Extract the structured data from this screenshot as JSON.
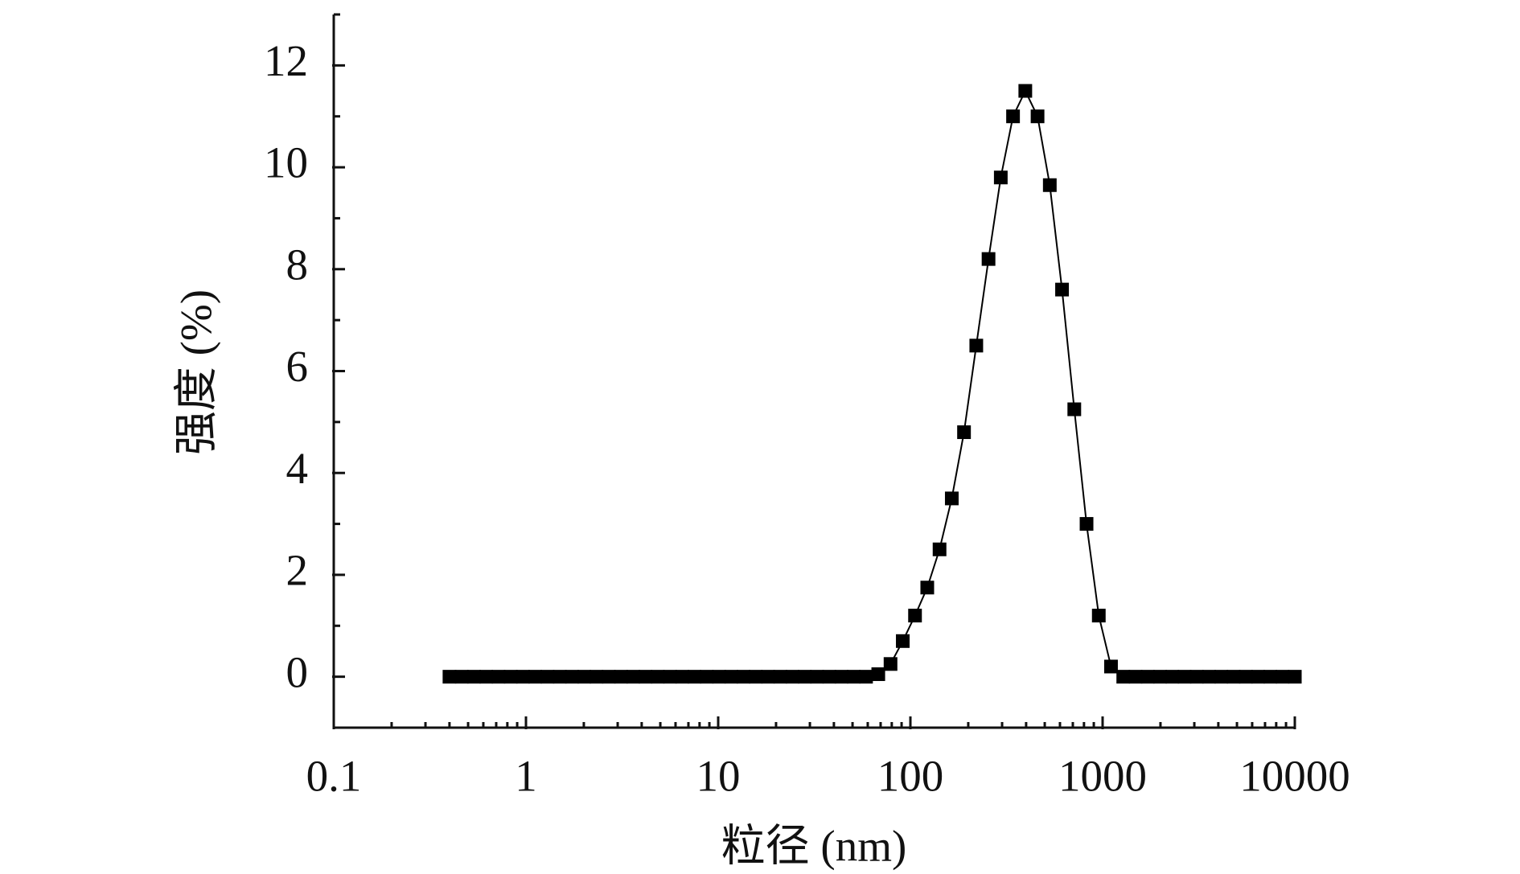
{
  "chart_data": {
    "type": "line",
    "x_label": "粒径 (nm)",
    "y_label": "强度 (%)",
    "x": [
      0.4,
      0.4632,
      0.5365,
      0.6213,
      0.7195,
      0.8332,
      0.9649,
      1.117,
      1.294,
      1.499,
      1.736,
      2.01,
      2.328,
      2.696,
      3.122,
      3.615,
      4.187,
      4.849,
      5.615,
      6.503,
      7.531,
      8.721,
      10.1,
      11.7,
      13.54,
      15.69,
      18.17,
      21.04,
      24.36,
      28.21,
      32.67,
      37.84,
      43.82,
      50.75,
      58.77,
      68.06,
      78.82,
      91.28,
      105.7,
      122.4,
      141.8,
      164.2,
      190.1,
      220.2,
      255,
      295.3,
      342,
      396.1,
      458.7,
      531.2,
      615.1,
      712.4,
      825,
      955.4,
      1106,
      1281,
      1484,
      1718,
      1990,
      2305,
      2669,
      3091,
      3580,
      4145,
      4801,
      5560,
      6439,
      7456,
      8635,
      10000
    ],
    "series": [
      {
        "color": "#000000",
        "marker": "square",
        "values": [
          0,
          0,
          0,
          0,
          0,
          0,
          0,
          0,
          0,
          0,
          0,
          0,
          0,
          0,
          0,
          0,
          0,
          0,
          0,
          0,
          0,
          0,
          0,
          0,
          0,
          0,
          0,
          0,
          0,
          0,
          0,
          0,
          0,
          0,
          0,
          0.05,
          0.25,
          0.7,
          1.2,
          1.75,
          2.5,
          3.5,
          4.8,
          6.5,
          8.2,
          9.8,
          11.0,
          11.5,
          11.0,
          9.65,
          7.6,
          5.25,
          3.0,
          1.2,
          0.2,
          0,
          0,
          0,
          0,
          0,
          0,
          0,
          0,
          0,
          0,
          0,
          0,
          0,
          0,
          0
        ]
      }
    ],
    "xscale": "log",
    "xlim": [
      0.1,
      10000
    ],
    "xticks": [
      0.1,
      1,
      10,
      100,
      1000,
      10000
    ],
    "ylim": [
      -1,
      13
    ],
    "yticks": [
      0,
      2,
      4,
      6,
      8,
      10,
      12
    ],
    "grid": false
  }
}
